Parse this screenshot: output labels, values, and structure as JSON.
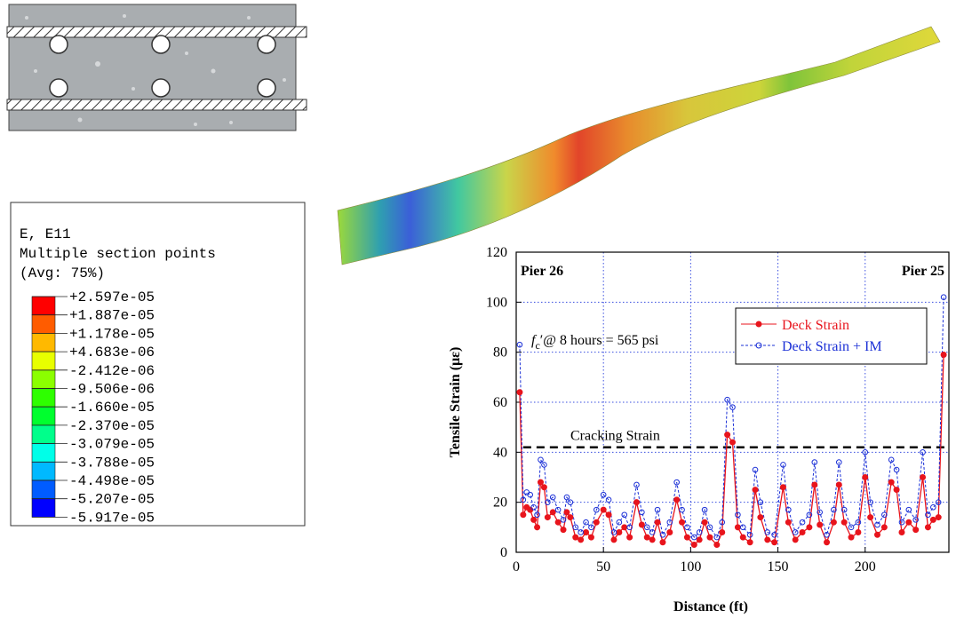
{
  "contour_legend": {
    "title_lines": [
      "E, E11",
      "Multiple section points",
      "(Avg: 75%)"
    ],
    "levels": [
      "+2.597e-05",
      "+1.887e-05",
      "+1.178e-05",
      "+4.683e-06",
      "-2.412e-06",
      "-9.506e-06",
      "-1.660e-05",
      "-2.370e-05",
      "-3.079e-05",
      "-3.788e-05",
      "-4.498e-05",
      "-5.207e-05",
      "-5.917e-05"
    ],
    "band_colors": [
      "#ff0000",
      "#ff5c00",
      "#ffb900",
      "#e8ff00",
      "#8bff00",
      "#2eff00",
      "#00ff2e",
      "#00ff8b",
      "#00ffe8",
      "#00b9ff",
      "#005cff",
      "#0000ff"
    ]
  },
  "chart_data": {
    "type": "line",
    "x_label": "Distance (ft)",
    "y_label": "Tensile Strain (με)",
    "pier_labels": [
      "Pier 26",
      "Pier 25"
    ],
    "annotation_parts": [
      "f",
      "c",
      "′@ 8 hours = 565 psi"
    ],
    "threshold": {
      "value": 42,
      "label": "Cracking Strain"
    },
    "xlim": [
      0,
      248
    ],
    "xticks": [
      0,
      50,
      100,
      150,
      200
    ],
    "ylim": [
      0,
      120
    ],
    "yticks": [
      0,
      20,
      40,
      60,
      80,
      100,
      120
    ],
    "grid": true,
    "legend": "upper right",
    "x": [
      2,
      4,
      6,
      8,
      10,
      12,
      14,
      16,
      18,
      21,
      24,
      27,
      29,
      31,
      34,
      37,
      40,
      43,
      46,
      50,
      53,
      56,
      59,
      62,
      65,
      69,
      72,
      75,
      78,
      81,
      84,
      88,
      92,
      95,
      98,
      102,
      105,
      108,
      111,
      115,
      118,
      121,
      124,
      127,
      130,
      134,
      137,
      140,
      144,
      148,
      153,
      156,
      160,
      164,
      168,
      171,
      174,
      178,
      182,
      185,
      188,
      192,
      196,
      200,
      203,
      207,
      211,
      215,
      218,
      221,
      225,
      229,
      233,
      236,
      239,
      242,
      245
    ],
    "series": [
      {
        "name": "Deck Strain",
        "color": "#e8141c",
        "values": [
          64,
          15,
          18,
          17,
          13,
          10,
          28,
          26,
          14,
          16,
          12,
          9,
          16,
          14,
          6,
          5,
          8,
          6,
          12,
          17,
          15,
          5,
          8,
          10,
          6,
          20,
          11,
          6,
          5,
          12,
          4,
          8,
          21,
          12,
          6,
          3,
          5,
          12,
          6,
          3,
          8,
          47,
          44,
          10,
          6,
          4,
          25,
          14,
          5,
          4,
          26,
          12,
          5,
          8,
          10,
          27,
          11,
          4,
          12,
          27,
          12,
          6,
          8,
          30,
          14,
          7,
          10,
          28,
          25,
          8,
          12,
          9,
          30,
          10,
          13,
          14,
          79
        ]
      },
      {
        "name": "Deck Strain + IM",
        "color": "#1a2fd6",
        "values": [
          83,
          21,
          24,
          23,
          18,
          15,
          37,
          35,
          20,
          22,
          17,
          13,
          22,
          20,
          10,
          8,
          12,
          10,
          17,
          23,
          21,
          8,
          12,
          15,
          10,
          27,
          16,
          10,
          8,
          17,
          7,
          12,
          28,
          17,
          10,
          6,
          8,
          17,
          10,
          6,
          12,
          61,
          58,
          15,
          10,
          7,
          33,
          20,
          8,
          7,
          35,
          17,
          8,
          12,
          15,
          36,
          16,
          7,
          17,
          36,
          17,
          10,
          12,
          40,
          20,
          11,
          15,
          37,
          33,
          12,
          17,
          13,
          40,
          15,
          18,
          20,
          102
        ]
      }
    ]
  }
}
